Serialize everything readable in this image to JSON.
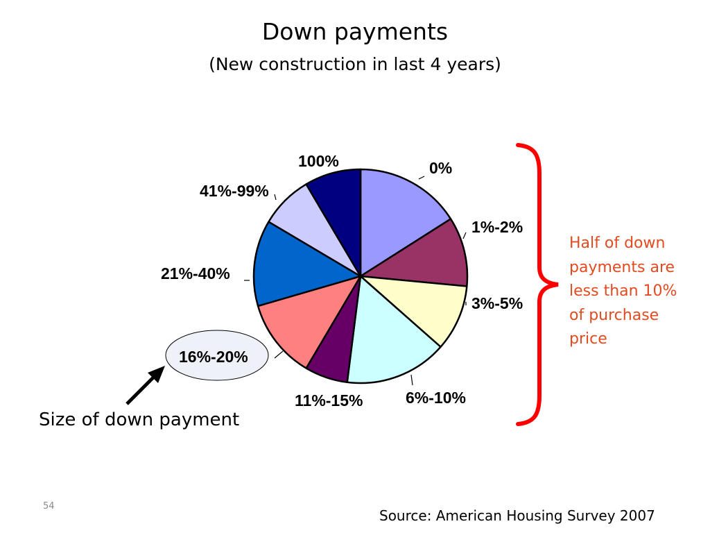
{
  "chart_data": {
    "type": "pie",
    "title": "Down payments",
    "subtitle": "(New construction in last 4 years)",
    "start_angle_deg": 0,
    "direction": "clockwise",
    "categories": [
      "0%",
      "1%-2%",
      "3%-5%",
      "6%-10%",
      "11%-15%",
      "16%-20%",
      "21%-40%",
      "41%-99%",
      "100%"
    ],
    "values": [
      16.0,
      10.5,
      10.0,
      15.5,
      6.5,
      12.0,
      13.0,
      8.0,
      8.5
    ],
    "colors": [
      "#9999ff",
      "#993366",
      "#ffffcc",
      "#ccffff",
      "#660066",
      "#ff8080",
      "#0066cc",
      "#ccccff",
      "#000080"
    ],
    "highlighted_category": "16%-20%",
    "highlight_color": "#eef2f8"
  },
  "annotation": {
    "lines": [
      "Half of down",
      "payments are",
      "less than 10%",
      "of purchase",
      "price"
    ],
    "color": "#e34a1f",
    "brace_color": "#ff0000"
  },
  "arrow_label": "Size of down payment",
  "slide_number": "54",
  "source": "Source: American Housing Survey 2007"
}
